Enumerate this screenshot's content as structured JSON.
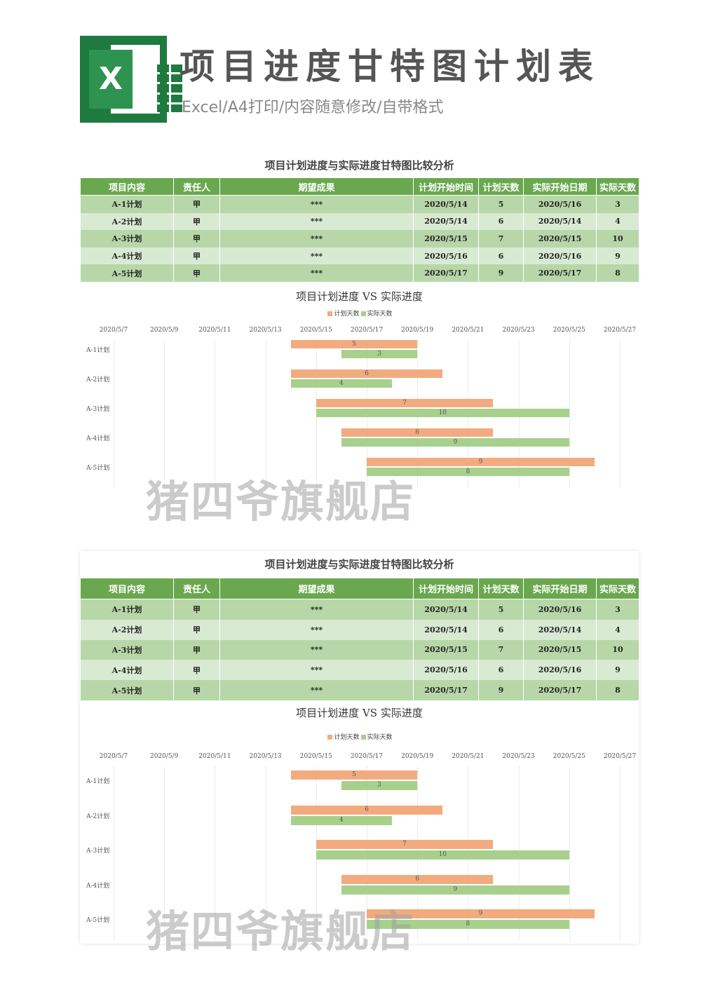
{
  "header": {
    "icon": "excel-icon",
    "logo_letter": "X",
    "title": "项目进度甘特图计划表",
    "subtitle": "Excel/A4打印/内容随意修改/自带格式"
  },
  "sheet": {
    "title": "项目计划进度与实际进度甘特图比较分析",
    "columns": [
      "项目内容",
      "责任人",
      "期望成果",
      "计划开始时间",
      "计划天数",
      "实际开始日期",
      "实际天数"
    ],
    "rows": [
      [
        "A-1计划",
        "甲",
        "***",
        "2020/5/14",
        "5",
        "2020/5/16",
        "3"
      ],
      [
        "A-2计划",
        "甲",
        "***",
        "2020/5/14",
        "6",
        "2020/5/14",
        "4"
      ],
      [
        "A-3计划",
        "甲",
        "***",
        "2020/5/15",
        "7",
        "2020/5/15",
        "10"
      ],
      [
        "A-4计划",
        "甲",
        "***",
        "2020/5/16",
        "6",
        "2020/5/16",
        "9"
      ],
      [
        "A-5计划",
        "甲",
        "***",
        "2020/5/17",
        "9",
        "2020/5/17",
        "8"
      ]
    ]
  },
  "chart_data": {
    "type": "bar",
    "title": "项目计划进度 VS 实际进度",
    "legend": [
      "计划天数",
      "实际天数"
    ],
    "legend_position": "top",
    "x_ticks": [
      "2020/5/7",
      "2020/5/9",
      "2020/5/11",
      "2020/5/13",
      "2020/5/15",
      "2020/5/17",
      "2020/5/19",
      "2020/5/21",
      "2020/5/23",
      "2020/5/25",
      "2020/5/27"
    ],
    "xlim": [
      "2020/5/7",
      "2020/5/27"
    ],
    "categories": [
      "A-1计划",
      "A-2计划",
      "A-3计划",
      "A-4计划",
      "A-5计划"
    ],
    "series": [
      {
        "name": "计划天数",
        "color": "#f2ab7f",
        "start": [
          "2020/5/14",
          "2020/5/14",
          "2020/5/15",
          "2020/5/16",
          "2020/5/17"
        ],
        "values": [
          5,
          6,
          7,
          6,
          9
        ]
      },
      {
        "name": "实际天数",
        "color": "#a8d08d",
        "start": [
          "2020/5/16",
          "2020/5/14",
          "2020/5/15",
          "2020/5/16",
          "2020/5/17"
        ],
        "values": [
          3,
          4,
          10,
          9,
          8
        ]
      }
    ],
    "grid": true
  },
  "watermark": "猪四爷旗舰店"
}
